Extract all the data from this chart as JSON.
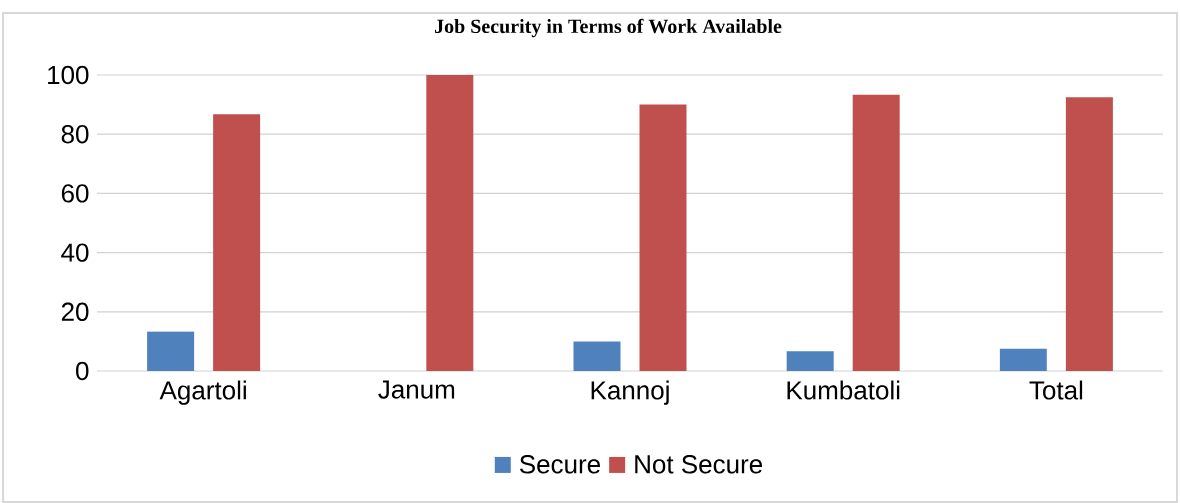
{
  "chart_data": {
    "type": "bar",
    "title": "Job Security in Terms of Work Available",
    "categories": [
      "Agartoli",
      "Janum",
      "Kannoj",
      "Kumbatoli",
      "Total"
    ],
    "series": [
      {
        "name": "Secure",
        "color": "#4f81bd",
        "values": [
          13.3,
          0,
          10,
          6.7,
          7.5
        ]
      },
      {
        "name": "Not Secure",
        "color": "#c0504d",
        "values": [
          86.7,
          100,
          90,
          93.3,
          92.5
        ]
      }
    ],
    "ylim": [
      0,
      100
    ],
    "yticks": [
      0,
      20,
      40,
      60,
      80,
      100
    ],
    "grid": "y",
    "legend": "bottom"
  }
}
